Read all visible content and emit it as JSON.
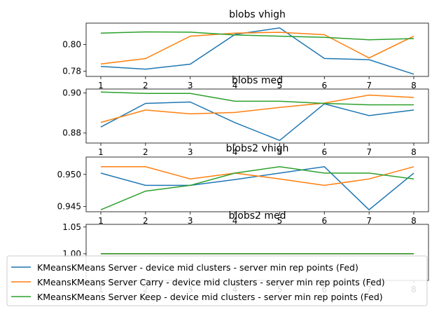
{
  "chart_data": [
    {
      "type": "line",
      "title": "blobs vhigh",
      "x": [
        1,
        2,
        3,
        4,
        5,
        6,
        7,
        8
      ],
      "ylim": [
        0.776,
        0.816
      ],
      "yticks": [
        0.78,
        0.8
      ],
      "ytick_labels": [
        "0.78",
        "0.80"
      ],
      "xtick_labels": [
        "1",
        "2",
        "3",
        "4",
        "5",
        "6",
        "7",
        "8"
      ],
      "series": [
        {
          "values": [
            0.7835,
            0.7815,
            0.7852,
            0.8075,
            0.8124,
            0.7895,
            0.7886,
            0.7777
          ]
        },
        {
          "values": [
            0.7853,
            0.7894,
            0.8062,
            0.8085,
            0.8091,
            0.8073,
            0.7899,
            0.8062
          ]
        },
        {
          "values": [
            0.8085,
            0.8094,
            0.8092,
            0.8071,
            0.8062,
            0.8053,
            0.8035,
            0.8044
          ]
        }
      ]
    },
    {
      "type": "line",
      "title": "blobs med",
      "x": [
        1,
        2,
        3,
        4,
        5,
        6,
        7,
        8
      ],
      "ylim": [
        0.875,
        0.902
      ],
      "yticks": [
        0.88,
        0.9
      ],
      "ytick_labels": [
        "0.88",
        "0.90"
      ],
      "xtick_labels": [
        "1",
        "2",
        "3",
        "4",
        "5",
        "6",
        "7",
        "8"
      ],
      "series": [
        {
          "values": [
            0.883,
            0.8948,
            0.8955,
            0.8852,
            0.8763,
            0.8946,
            0.8887,
            0.8915
          ]
        },
        {
          "values": [
            0.8853,
            0.8915,
            0.8896,
            0.8903,
            0.8928,
            0.895,
            0.899,
            0.8978
          ]
        },
        {
          "values": [
            0.9005,
            0.8998,
            0.8998,
            0.8959,
            0.8959,
            0.8948,
            0.8941,
            0.8941
          ]
        }
      ]
    },
    {
      "type": "line",
      "title": "blobs2 vhigh",
      "x": [
        1,
        2,
        3,
        4,
        5,
        6,
        7,
        8
      ],
      "ylim": [
        0.9442,
        0.9527
      ],
      "yticks": [
        0.945,
        0.95
      ],
      "ytick_labels": [
        "0.945",
        "0.950"
      ],
      "xtick_labels": [
        "1",
        "2",
        "3",
        "4",
        "5",
        "6",
        "7",
        "8"
      ],
      "series": [
        {
          "values": [
            0.9502,
            0.9483,
            0.9483,
            0.9492,
            0.9502,
            0.9512,
            0.9445,
            0.9502
          ]
        },
        {
          "values": [
            0.9512,
            0.9512,
            0.9493,
            0.9502,
            0.9493,
            0.9483,
            0.9493,
            0.9512
          ]
        },
        {
          "values": [
            0.9445,
            0.9474,
            0.9483,
            0.9502,
            0.9512,
            0.9502,
            0.9502,
            0.9493
          ]
        }
      ]
    },
    {
      "type": "line",
      "title": "blobs2 med",
      "x": [
        1,
        2,
        3,
        4,
        5,
        6,
        7,
        8
      ],
      "ylim": [
        0.95,
        1.055
      ],
      "yticks": [
        1.0,
        1.05
      ],
      "ytick_labels": [
        "1.00",
        "1.05"
      ],
      "xtick_labels": [
        "1",
        "2",
        "3",
        "4",
        "5",
        "6",
        "7",
        "8"
      ],
      "series": [
        {
          "values": [
            1.0,
            1.0,
            1.0,
            1.0,
            1.0,
            1.0,
            1.0,
            1.0
          ]
        },
        {
          "values": [
            1.0,
            1.0,
            1.0,
            1.0,
            1.0,
            1.0,
            1.0,
            1.0
          ]
        },
        {
          "values": [
            1.0,
            1.0,
            1.0,
            1.0,
            1.0,
            1.0,
            1.0,
            1.0
          ]
        }
      ]
    }
  ],
  "legend": {
    "placement": "bottom",
    "entries": [
      {
        "label": "KMeansKMeans Server - device mid clusters - server min rep points (Fed)",
        "color": "#1f77b4"
      },
      {
        "label": "KMeansKMeans Server Carry - device mid clusters - server min rep points (Fed)",
        "color": "#ff7f0e"
      },
      {
        "label": "KMeansKMeans Server Keep - device mid clusters - server min rep points (Fed)",
        "color": "#2ca02c"
      }
    ]
  },
  "series_colors": [
    "#1f77b4",
    "#ff7f0e",
    "#2ca02c"
  ]
}
